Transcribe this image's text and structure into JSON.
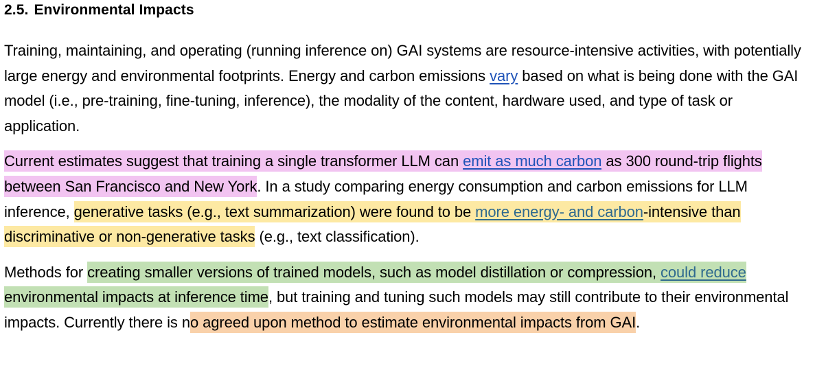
{
  "section": {
    "number": "2.5.",
    "title": "Environmental Impacts"
  },
  "paragraphs": {
    "p1": {
      "t1": "Training, maintaining, and operating (running inference on) GAI systems are resource-intensive activities, with potentially large energy and environmental footprints. Energy and carbon emissions ",
      "link_vary": "vary",
      "t2": " based on what is being done with the GAI model (i.e., pre-training, fine-tuning, inference), the modality of the content, hardware used, and type of task or application."
    },
    "p2": {
      "h1": "Current estimates suggest that training a single transformer LLM can ",
      "link_emit": "emit as much carbon",
      "h2": " as 300 round-trip flights between San Francisco and New York",
      "t1": ". In a study comparing energy consumption and carbon emissions for LLM inference, ",
      "y1": "generative tasks (e.g., text summarization) were found to be ",
      "link_more": "more energy- and carbon",
      "y2": "-intensive than discriminative or non-generative tasks",
      "t2": " (e.g., text classification)."
    },
    "p3": {
      "t1": "Methods for ",
      "g1": "creating smaller versions of trained models, such as model distillation or compression, ",
      "link_could": "could reduce",
      "g2": " environmental impacts at inference time",
      "t2": ", but training and tuning such models may still contribute to their environmental impacts. Currently there is n",
      "o1": "o agreed upon method to estimate environmental impacts from GAI",
      "t3": "."
    }
  },
  "colors": {
    "link": "#1f53b8",
    "highlight_pink": "#f2c4f1",
    "highlight_yellow": "#fde9a3",
    "highlight_green": "#c2e0b4",
    "highlight_orange": "#f9d1aa"
  }
}
